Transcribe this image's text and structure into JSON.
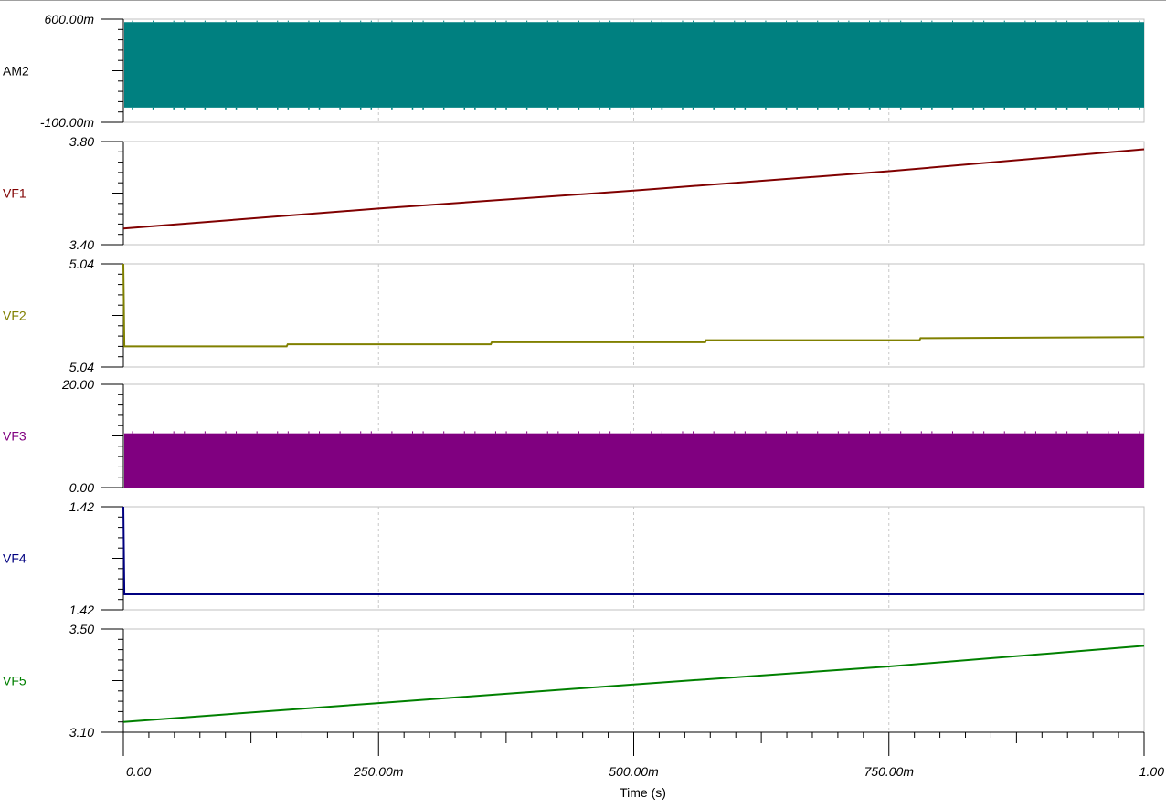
{
  "chart_data": {
    "type": "line",
    "title": "",
    "xlabel": "Time (s)",
    "xlim": [
      0,
      1
    ],
    "x_tick_labels": [
      "0.00",
      "250.00m",
      "500.00m",
      "750.00m",
      "1.00"
    ],
    "x_ticks": [
      0,
      0.25,
      0.5,
      0.75,
      1.0
    ],
    "grid": true,
    "panels": [
      {
        "name": "AM2",
        "color": "#008080",
        "ylim": [
          -0.1,
          0.6
        ],
        "ymax_label": "600.00m",
        "ymin_label": "-100.00m",
        "style": "band",
        "band": [
          -0.0,
          0.58
        ],
        "band_dips": -0.012,
        "band_peaks": 0.59
      },
      {
        "name": "VF1",
        "color": "#800000",
        "ylim": [
          3.4,
          3.8
        ],
        "ymax_label": "3.80",
        "ymin_label": "3.40",
        "style": "line",
        "x": [
          0,
          0.25,
          0.5,
          0.75,
          1.0
        ],
        "y": [
          3.463,
          3.54,
          3.61,
          3.685,
          3.77
        ]
      },
      {
        "name": "VF2",
        "color": "#808000",
        "ylim": [
          5.0395,
          5.0405
        ],
        "ymax_label": "5.04",
        "ymin_label": "5.04",
        "style": "line",
        "x": [
          0,
          0.001,
          0.005,
          0.16,
          0.161,
          0.36,
          0.361,
          0.57,
          0.571,
          0.78,
          0.781,
          1.0
        ],
        "y": [
          5.0405,
          5.0397,
          5.0397,
          5.0397,
          5.03972,
          5.03972,
          5.03974,
          5.03974,
          5.03976,
          5.03976,
          5.03978,
          5.03979
        ]
      },
      {
        "name": "VF3",
        "color": "#800080",
        "ylim": [
          0,
          20
        ],
        "ymax_label": "20.00",
        "ymin_label": "0.00",
        "style": "band",
        "band": [
          0,
          10.5
        ],
        "band_dips": 0,
        "band_peaks": 10.9
      },
      {
        "name": "VF4",
        "color": "#000080",
        "ylim": [
          1.4195,
          1.4205
        ],
        "ymax_label": "1.42",
        "ymin_label": "1.42",
        "style": "line",
        "x": [
          0,
          0.001,
          1.0
        ],
        "y": [
          1.4205,
          1.41965,
          1.41965
        ]
      },
      {
        "name": "VF5",
        "color": "#008000",
        "ylim": [
          3.1,
          3.5
        ],
        "ymax_label": "3.50",
        "ymin_label": "3.10",
        "style": "line",
        "x": [
          0,
          0.25,
          0.5,
          0.75,
          1.0
        ],
        "y": [
          3.14,
          3.213,
          3.285,
          3.355,
          3.435
        ]
      }
    ]
  }
}
